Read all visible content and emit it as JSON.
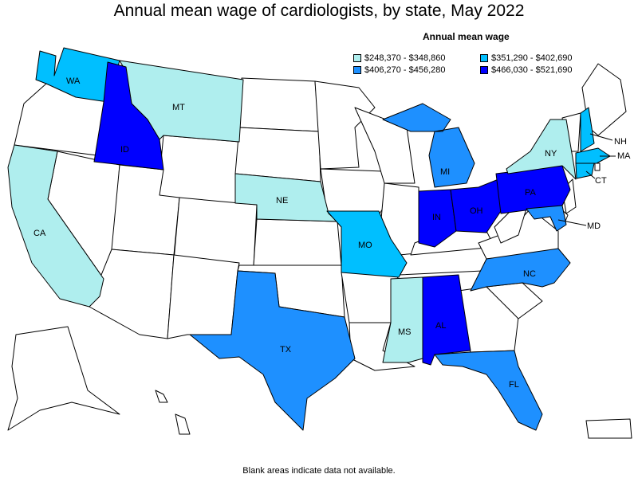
{
  "title": "Annual mean wage of cardiologists, by state, May 2022",
  "legend": {
    "title": "Annual mean wage",
    "items": [
      {
        "range": "$248,370 - $348,860",
        "color": "#afeeee"
      },
      {
        "range": "$351,290 - $402,690",
        "color": "#00bfff"
      },
      {
        "range": "$406,270 - $456,280",
        "color": "#1e90ff"
      },
      {
        "range": "$466,030 - $521,690",
        "color": "#0000ff"
      }
    ]
  },
  "footnote": "Blank areas indicate data not available.",
  "states": {
    "WA": {
      "label": "WA",
      "tier": 1
    },
    "MT": {
      "label": "MT",
      "tier": 0
    },
    "ID": {
      "label": "ID",
      "tier": 3
    },
    "CA": {
      "label": "CA",
      "tier": 0
    },
    "NE": {
      "label": "NE",
      "tier": 0
    },
    "MO": {
      "label": "MO",
      "tier": 1
    },
    "TX": {
      "label": "TX",
      "tier": 2
    },
    "MS": {
      "label": "MS",
      "tier": 0
    },
    "AL": {
      "label": "AL",
      "tier": 3
    },
    "FL": {
      "label": "FL",
      "tier": 2
    },
    "MI": {
      "label": "MI",
      "tier": 2
    },
    "IN": {
      "label": "IN",
      "tier": 3
    },
    "OH": {
      "label": "OH",
      "tier": 3
    },
    "PA": {
      "label": "PA",
      "tier": 3
    },
    "NY": {
      "label": "NY",
      "tier": 0
    },
    "NC": {
      "label": "NC",
      "tier": 2
    },
    "NH": {
      "label": "NH",
      "tier": 1
    },
    "MA": {
      "label": "MA",
      "tier": 1
    },
    "CT": {
      "label": "CT",
      "tier": 1
    },
    "MD": {
      "label": "MD",
      "tier": 2
    }
  }
}
